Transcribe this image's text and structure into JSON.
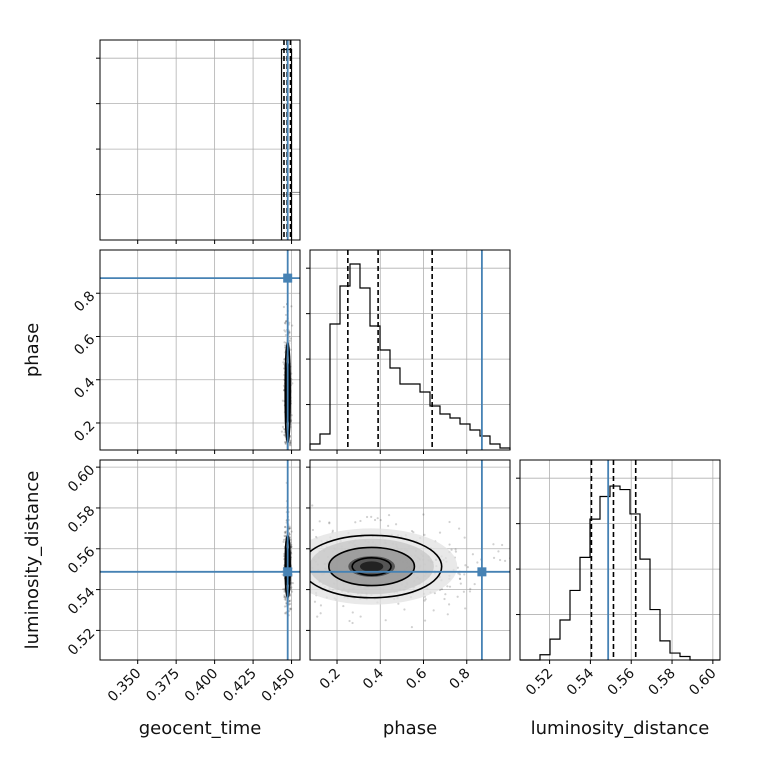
{
  "chart_data": {
    "type": "corner",
    "parameters": [
      "geocent_time",
      "phase",
      "luminosity_distance"
    ],
    "axis_labels": {
      "geocent_time": "geocent_time",
      "phase": "phase",
      "luminosity_distance": "luminosity_distance"
    },
    "ranges": {
      "geocent_time": [
        0.3255,
        0.4555
      ],
      "phase": [
        0.075,
        1.0
      ],
      "luminosity_distance": [
        0.5055,
        0.6035
      ]
    },
    "ticks": {
      "geocent_time": {
        "values": [
          0.35,
          0.375,
          0.4,
          0.425,
          0.45
        ],
        "labels": [
          "0.350",
          "0.375",
          "0.400",
          "0.425",
          "0.450"
        ]
      },
      "phase": {
        "values": [
          0.2,
          0.4,
          0.6,
          0.8
        ],
        "labels": [
          "0.2",
          "0.4",
          "0.6",
          "0.8"
        ]
      },
      "luminosity_distance": {
        "values": [
          0.52,
          0.54,
          0.56,
          0.58,
          0.6
        ],
        "labels": [
          "0.52",
          "0.54",
          "0.56",
          "0.58",
          "0.60"
        ]
      }
    },
    "truths": {
      "geocent_time": 0.4475,
      "phase": 0.87,
      "luminosity_distance": 0.5487
    },
    "truth_color": "#4682b4",
    "quantiles": {
      "geocent_time": [
        0.4451,
        0.4471,
        0.4493
      ],
      "phase": [
        0.25,
        0.39,
        0.64
      ],
      "luminosity_distance": [
        0.5405,
        0.5513,
        0.5622
      ]
    },
    "histograms": {
      "geocent_time": {
        "bins": [
          [
            0.4435,
            0.45
          ]
        ],
        "values": [
          1.0
        ],
        "bg_bins": [
          [
            0.45,
            0.4555
          ]
        ],
        "bg_values": [
          0.25
        ]
      },
      "phase": {
        "edges": [
          0.075,
          0.1212,
          0.1675,
          0.2138,
          0.26,
          0.3062,
          0.3525,
          0.3988,
          0.445,
          0.4912,
          0.5375,
          0.5838,
          0.63,
          0.6762,
          0.7225,
          0.7688,
          0.815,
          0.8612,
          0.9075,
          0.9538,
          1.0
        ],
        "values": [
          0.03,
          0.08,
          0.63,
          0.82,
          0.93,
          0.81,
          0.62,
          0.5,
          0.41,
          0.33,
          0.33,
          0.29,
          0.22,
          0.18,
          0.16,
          0.13,
          0.1,
          0.07,
          0.03,
          0.01
        ]
      },
      "luminosity_distance": {
        "edges": [
          0.5055,
          0.5104,
          0.5153,
          0.5202,
          0.5251,
          0.53,
          0.5349,
          0.5398,
          0.5447,
          0.5496,
          0.5545,
          0.5594,
          0.5643,
          0.5692,
          0.5741,
          0.579,
          0.5839,
          0.5888,
          0.5937,
          0.5986,
          0.6035
        ],
        "values": [
          0.0,
          0.0,
          0.03,
          0.12,
          0.23,
          0.4,
          0.59,
          0.81,
          0.94,
          1.0,
          0.98,
          0.84,
          0.58,
          0.29,
          0.11,
          0.04,
          0.02,
          0.0,
          0.0,
          0.0
        ]
      }
    },
    "histogram_ylim": {
      "geocent_time": [
        0,
        1.05
      ],
      "phase": [
        0,
        1.0
      ],
      "luminosity_distance": [
        0,
        1.15
      ]
    },
    "joint_cores": {
      "geocent_time__phase": {
        "x": 0.4475,
        "y": 0.34,
        "sx": 0.0009,
        "sy": 0.13
      },
      "geocent_time__luminosity_distance": {
        "x": 0.4475,
        "y": 0.5513,
        "sx": 0.0009,
        "sy": 0.0085
      },
      "phase__luminosity_distance": {
        "x": 0.36,
        "y": 0.5513,
        "sx": 0.18,
        "sy": 0.0085
      }
    },
    "grid": true,
    "style": {
      "hist_color": "#000000",
      "contour_color": "#000000",
      "grid_color": "#b0b0b0"
    }
  }
}
